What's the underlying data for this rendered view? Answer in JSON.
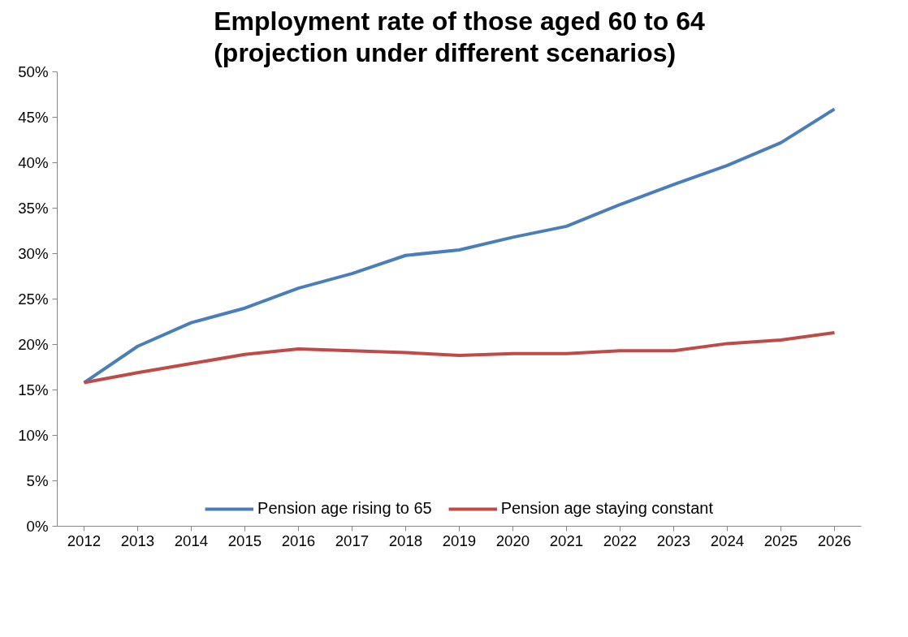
{
  "chart_data": {
    "type": "line",
    "title": "Employment rate of those aged 60 to 64\n(projection under different scenarios)",
    "categories": [
      "2012",
      "2013",
      "2014",
      "2015",
      "2016",
      "2017",
      "2018",
      "2019",
      "2020",
      "2021",
      "2022",
      "2023",
      "2024",
      "2025",
      "2026"
    ],
    "series": [
      {
        "name": "Pension age rising to 65",
        "color": "#4a7ebb",
        "values": [
          15.8,
          19.8,
          22.4,
          24.0,
          26.2,
          27.8,
          29.8,
          30.4,
          31.8,
          33.0,
          35.4,
          37.6,
          39.7,
          42.2,
          45.9
        ]
      },
      {
        "name": "Pension age staying constant",
        "color": "#be4b48",
        "values": [
          15.8,
          16.9,
          17.9,
          18.9,
          19.5,
          19.3,
          19.1,
          18.8,
          19.0,
          19.0,
          19.3,
          19.3,
          20.1,
          20.5,
          21.3
        ]
      }
    ],
    "ylim": [
      0,
      50
    ],
    "yticks": [
      {
        "value": 0,
        "label": "0%"
      },
      {
        "value": 5,
        "label": "5%"
      },
      {
        "value": 10,
        "label": "10%"
      },
      {
        "value": 15,
        "label": "15%"
      },
      {
        "value": 20,
        "label": "20%"
      },
      {
        "value": 25,
        "label": "25%"
      },
      {
        "value": 30,
        "label": "30%"
      },
      {
        "value": 35,
        "label": "35%"
      },
      {
        "value": 40,
        "label": "40%"
      },
      {
        "value": 45,
        "label": "45%"
      },
      {
        "value": 50,
        "label": "50%"
      }
    ],
    "grid": false,
    "legend": "bottom",
    "marker": "none",
    "line_style": "solid"
  }
}
